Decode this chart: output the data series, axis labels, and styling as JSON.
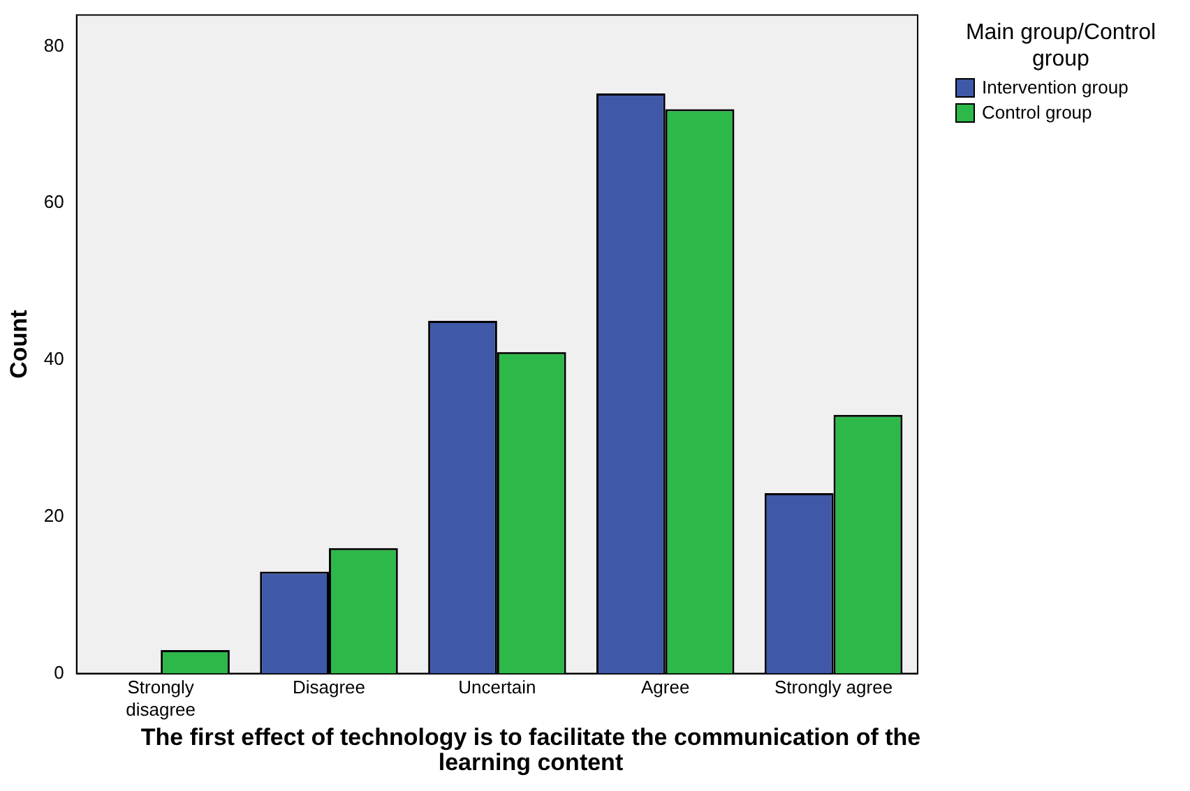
{
  "chart_data": {
    "type": "bar",
    "xlabel": "The first effect of technology is to facilitate the communication of the learning content",
    "ylabel": "Count",
    "legend_title": "Main group/Control group",
    "legend": "top right",
    "grid": false,
    "categories": [
      "Strongly disagree",
      "Disagree",
      "Uncertain",
      "Agree",
      "Strongly agree"
    ],
    "series": [
      {
        "name": "Intervention group",
        "color": "#3f58a8",
        "values": [
          0,
          13,
          45,
          74,
          23
        ]
      },
      {
        "name": "Control group",
        "color": "#2db84a",
        "values": [
          3,
          16,
          41,
          72,
          33
        ]
      }
    ],
    "ylim": [
      0,
      84
    ],
    "yticks": [
      0,
      20,
      40,
      60,
      80
    ]
  }
}
